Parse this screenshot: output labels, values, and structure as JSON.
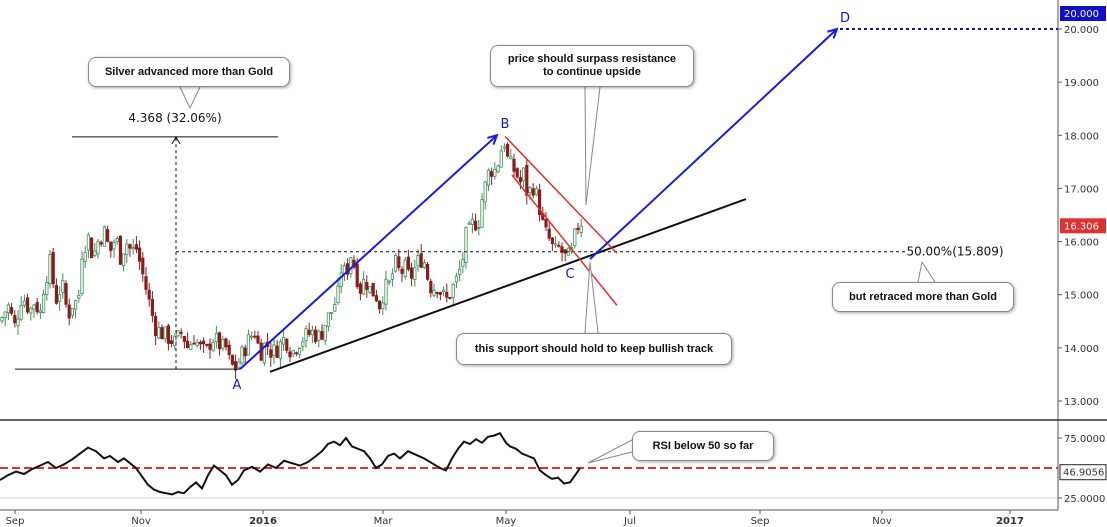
{
  "chart_data": [
    {
      "type": "candlestick",
      "title": "",
      "ylim": [
        12.8,
        20.5
      ],
      "yticks": [
        "13.000",
        "14.000",
        "15.000",
        "16.000",
        "17.000",
        "18.000",
        "19.000",
        "20.000"
      ],
      "xticks": [
        {
          "label": "Sep",
          "bold": false
        },
        {
          "label": "Nov",
          "bold": false
        },
        {
          "label": "2016",
          "bold": true
        },
        {
          "label": "Mar",
          "bold": false
        },
        {
          "label": "May",
          "bold": false
        },
        {
          "label": "Jul",
          "bold": false
        },
        {
          "label": "Sep",
          "bold": false
        },
        {
          "label": "Nov",
          "bold": false
        },
        {
          "label": "2017",
          "bold": true
        }
      ],
      "close_path": [
        [
          0,
          14.5
        ],
        [
          8,
          14.8
        ],
        [
          15,
          14.4
        ],
        [
          22,
          15.0
        ],
        [
          30,
          14.7
        ],
        [
          35,
          14.9
        ],
        [
          40,
          14.6
        ],
        [
          44,
          15.2
        ],
        [
          50,
          15.6
        ],
        [
          56,
          14.9
        ],
        [
          62,
          15.2
        ],
        [
          68,
          14.6
        ],
        [
          74,
          14.9
        ],
        [
          78,
          14.8
        ],
        [
          82,
          15.8
        ],
        [
          88,
          16.1
        ],
        [
          93,
          15.7
        ],
        [
          98,
          16.0
        ],
        [
          104,
          16.2
        ],
        [
          110,
          15.8
        ],
        [
          116,
          16.1
        ],
        [
          120,
          15.7
        ],
        [
          126,
          16.0
        ],
        [
          132,
          15.8
        ],
        [
          136,
          15.9
        ],
        [
          140,
          15.6
        ],
        [
          145,
          15.2
        ],
        [
          150,
          14.8
        ],
        [
          155,
          14.4
        ],
        [
          160,
          14.3
        ],
        [
          168,
          14.2
        ],
        [
          175,
          14.1
        ],
        [
          182,
          14.3
        ],
        [
          188,
          14.0
        ],
        [
          194,
          14.2
        ],
        [
          200,
          14.0
        ],
        [
          206,
          13.9
        ],
        [
          212,
          14.2
        ],
        [
          218,
          14.1
        ],
        [
          222,
          14.0
        ],
        [
          226,
          14.0
        ],
        [
          230,
          13.7
        ],
        [
          235,
          13.6
        ],
        [
          240,
          13.8
        ],
        [
          245,
          14.0
        ],
        [
          250,
          14.2
        ],
        [
          255,
          14.3
        ],
        [
          260,
          13.9
        ],
        [
          266,
          14.1
        ],
        [
          272,
          13.9
        ],
        [
          278,
          14.0
        ],
        [
          285,
          14.2
        ],
        [
          292,
          13.9
        ],
        [
          298,
          14.1
        ],
        [
          304,
          14.2
        ],
        [
          312,
          14.3
        ],
        [
          320,
          14.2
        ],
        [
          326,
          14.5
        ],
        [
          332,
          14.7
        ],
        [
          338,
          15.0
        ],
        [
          342,
          15.6
        ],
        [
          346,
          15.3
        ],
        [
          350,
          15.8
        ],
        [
          355,
          15.5
        ],
        [
          360,
          15.1
        ],
        [
          365,
          15.3
        ],
        [
          370,
          15.1
        ],
        [
          376,
          15.0
        ],
        [
          380,
          14.8
        ],
        [
          384,
          15.1
        ],
        [
          390,
          15.2
        ],
        [
          395,
          15.6
        ],
        [
          400,
          15.4
        ],
        [
          405,
          15.5
        ],
        [
          410,
          15.3
        ],
        [
          415,
          15.5
        ],
        [
          420,
          15.7
        ],
        [
          425,
          15.6
        ],
        [
          428,
          15.3
        ],
        [
          432,
          15.1
        ],
        [
          437,
          15.2
        ],
        [
          442,
          15.0
        ],
        [
          447,
          14.9
        ],
        [
          452,
          15.1
        ],
        [
          457,
          15.3
        ],
        [
          462,
          15.6
        ],
        [
          466,
          16.1
        ],
        [
          470,
          16.2
        ],
        [
          474,
          16.4
        ],
        [
          478,
          16.3
        ],
        [
          482,
          16.8
        ],
        [
          486,
          17.1
        ],
        [
          490,
          17.4
        ],
        [
          494,
          17.3
        ],
        [
          498,
          17.5
        ],
        [
          502,
          17.8
        ],
        [
          505,
          17.9
        ],
        [
          508,
          17.5
        ],
        [
          512,
          17.4
        ],
        [
          516,
          17.3
        ],
        [
          520,
          17.1
        ],
        [
          524,
          17.3
        ],
        [
          528,
          16.8
        ],
        [
          532,
          17.1
        ],
        [
          536,
          16.9
        ],
        [
          540,
          16.6
        ],
        [
          544,
          16.2
        ],
        [
          548,
          16.1
        ],
        [
          552,
          15.9
        ],
        [
          556,
          15.8
        ],
        [
          560,
          15.9
        ],
        [
          564,
          15.7
        ],
        [
          568,
          15.7
        ],
        [
          572,
          15.8
        ],
        [
          576,
          16.2
        ],
        [
          580,
          16.4
        ],
        [
          584,
          16.3
        ]
      ],
      "last_price": "16.306",
      "last_price_color": "#e0312f",
      "target_price": "20.000",
      "target_color": "#1010c8",
      "series_up_color": "#3f8f5a",
      "series_down_color": "#8a1c1c",
      "points": [
        {
          "label": "A",
          "x": 237,
          "y": 13.6
        },
        {
          "label": "B",
          "x": 505,
          "y": 18.0
        },
        {
          "label": "C",
          "x": 570,
          "y": 15.7
        },
        {
          "label": "D",
          "x": 845,
          "y": 20.0
        }
      ],
      "measure_label": "4.368 (32.06%)",
      "fib_label": "50.00%(15.809)"
    },
    {
      "type": "line",
      "name": "RSI",
      "ylim": [
        20,
        85
      ],
      "yticks": [
        "25.0000",
        "75.0000"
      ],
      "level": 50,
      "current": "46.9056",
      "current_color": "#222222",
      "level_color": "#e0312f",
      "values": [
        [
          0,
          40
        ],
        [
          8,
          44
        ],
        [
          16,
          47
        ],
        [
          24,
          45
        ],
        [
          32,
          49
        ],
        [
          40,
          52
        ],
        [
          48,
          55
        ],
        [
          56,
          50
        ],
        [
          64,
          53
        ],
        [
          72,
          57
        ],
        [
          80,
          62
        ],
        [
          88,
          67
        ],
        [
          96,
          64
        ],
        [
          104,
          58
        ],
        [
          110,
          60
        ],
        [
          118,
          55
        ],
        [
          124,
          58
        ],
        [
          130,
          54
        ],
        [
          136,
          50
        ],
        [
          142,
          43
        ],
        [
          148,
          36
        ],
        [
          154,
          32
        ],
        [
          160,
          30
        ],
        [
          166,
          29
        ],
        [
          172,
          28
        ],
        [
          178,
          30
        ],
        [
          184,
          29
        ],
        [
          190,
          34
        ],
        [
          196,
          38
        ],
        [
          202,
          33
        ],
        [
          208,
          44
        ],
        [
          214,
          52
        ],
        [
          220,
          48
        ],
        [
          226,
          44
        ],
        [
          232,
          36
        ],
        [
          238,
          40
        ],
        [
          244,
          48
        ],
        [
          252,
          51
        ],
        [
          260,
          47
        ],
        [
          268,
          53
        ],
        [
          276,
          50
        ],
        [
          284,
          56
        ],
        [
          292,
          54
        ],
        [
          300,
          52
        ],
        [
          308,
          55
        ],
        [
          316,
          60
        ],
        [
          322,
          64
        ],
        [
          328,
          70
        ],
        [
          334,
          72
        ],
        [
          340,
          69
        ],
        [
          346,
          75
        ],
        [
          352,
          68
        ],
        [
          358,
          66
        ],
        [
          364,
          64
        ],
        [
          370,
          58
        ],
        [
          376,
          50
        ],
        [
          382,
          53
        ],
        [
          388,
          60
        ],
        [
          394,
          62
        ],
        [
          400,
          58
        ],
        [
          408,
          64
        ],
        [
          416,
          61
        ],
        [
          424,
          58
        ],
        [
          432,
          54
        ],
        [
          440,
          50
        ],
        [
          446,
          48
        ],
        [
          452,
          58
        ],
        [
          458,
          66
        ],
        [
          464,
          72
        ],
        [
          470,
          70
        ],
        [
          476,
          74
        ],
        [
          482,
          71
        ],
        [
          488,
          76
        ],
        [
          494,
          77
        ],
        [
          500,
          79
        ],
        [
          506,
          71
        ],
        [
          510,
          68
        ],
        [
          516,
          66
        ],
        [
          522,
          62
        ],
        [
          528,
          60
        ],
        [
          534,
          58
        ],
        [
          540,
          48
        ],
        [
          546,
          44
        ],
        [
          552,
          41
        ],
        [
          558,
          42
        ],
        [
          564,
          37
        ],
        [
          570,
          38
        ],
        [
          576,
          45
        ],
        [
          580,
          50
        ]
      ]
    }
  ],
  "annotations": {
    "silver_vs_gold": "Silver advanced more than Gold",
    "resistance": "price should surpass resistance\nto continue upside",
    "retraced": "but retraced more than Gold",
    "support": "this support should hold to keep bullish track",
    "rsi_note": "RSI below 50 so far"
  }
}
